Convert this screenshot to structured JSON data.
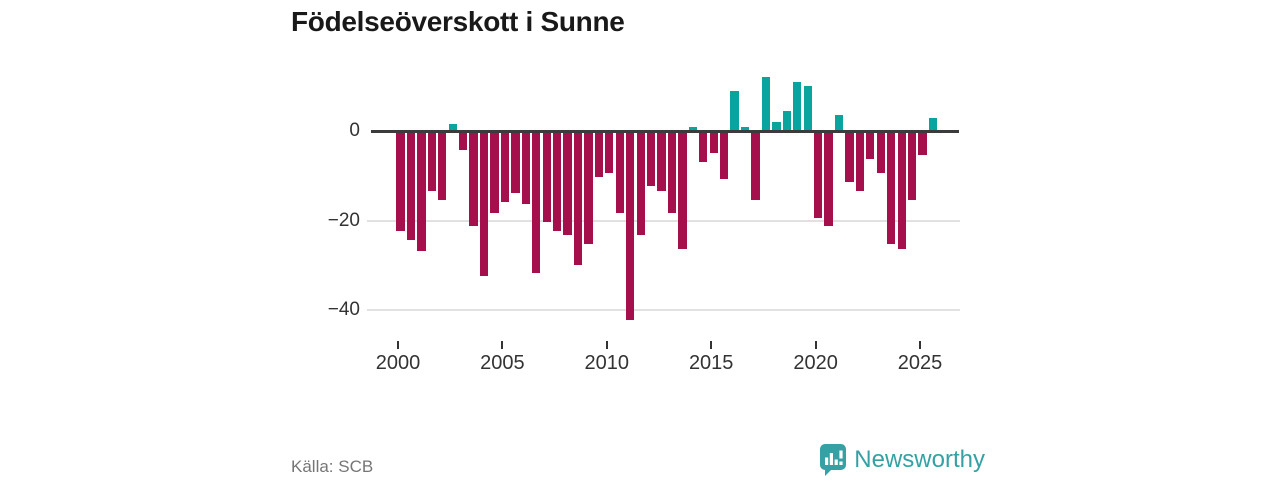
{
  "title": "Födelseöverskott i Sunne",
  "source_label": "Källa: SCB",
  "brand": {
    "name": "Newsworthy"
  },
  "colors": {
    "negative_bar": "#a50f4c",
    "positive_bar": "#0aa49e",
    "grid_line": "#e1e1e1",
    "zero_line": "#3b3b3b",
    "axis_text": "#333333",
    "title_text": "#191919",
    "source_text": "#767676",
    "brand_teal": "#35a1a4"
  },
  "chart_data": {
    "type": "bar",
    "title": "Födelseöverskott i Sunne",
    "xlabel": "",
    "ylabel": "",
    "x_tick_labels": [
      "2000",
      "2005",
      "2010",
      "2015",
      "2020",
      "2025"
    ],
    "x_tick_years": [
      2000,
      2005,
      2010,
      2015,
      2020,
      2025
    ],
    "y_ticks": [
      {
        "value": 0,
        "label": "0"
      },
      {
        "value": -20,
        "label": "−20"
      },
      {
        "value": -40,
        "label": "−40"
      }
    ],
    "ylim": [
      -45,
      16
    ],
    "grid": "horizontal-light",
    "legend": "none",
    "bar_colors": {
      "positive": "#0aa49e",
      "negative": "#a50f4c"
    },
    "periods": [
      "2000-H1",
      "2000-H2",
      "2001-H1",
      "2001-H2",
      "2002-H1",
      "2002-H2",
      "2003-H1",
      "2003-H2",
      "2004-H1",
      "2004-H2",
      "2005-H1",
      "2005-H2",
      "2006-H1",
      "2006-H2",
      "2007-H1",
      "2007-H2",
      "2008-H1",
      "2008-H2",
      "2009-H1",
      "2009-H2",
      "2010-H1",
      "2010-H2",
      "2011-H1",
      "2011-H2",
      "2012-H1",
      "2012-H2",
      "2013-H1",
      "2013-H2",
      "2014-H1",
      "2014-H2",
      "2015-H1",
      "2015-H2",
      "2016-H1",
      "2016-H2",
      "2017-H1",
      "2017-H2",
      "2018-H1",
      "2018-H2",
      "2019-H1",
      "2019-H2",
      "2020-H1",
      "2020-H2",
      "2021-H1",
      "2021-H2",
      "2022-H1",
      "2022-H2",
      "2023-H1",
      "2023-H2",
      "2024-H1",
      "2024-H2",
      "2025-H1",
      "2025-H2"
    ],
    "values": [
      -22,
      -24,
      -26.5,
      -13,
      -15,
      1.5,
      -4,
      -21,
      -32,
      -18,
      -15.5,
      -13.5,
      -16,
      -31.5,
      -20,
      -22,
      -23,
      -29.5,
      -25,
      -10,
      -9,
      -18,
      -42,
      -23,
      -12,
      -13,
      -18,
      -26,
      1,
      -6.5,
      -4.5,
      -10.5,
      9,
      1,
      -15,
      12,
      2,
      4.5,
      11,
      10,
      -19,
      -21,
      3.5,
      -11,
      -13,
      -6,
      -9,
      -25,
      -26,
      -15,
      -5,
      3
    ]
  }
}
